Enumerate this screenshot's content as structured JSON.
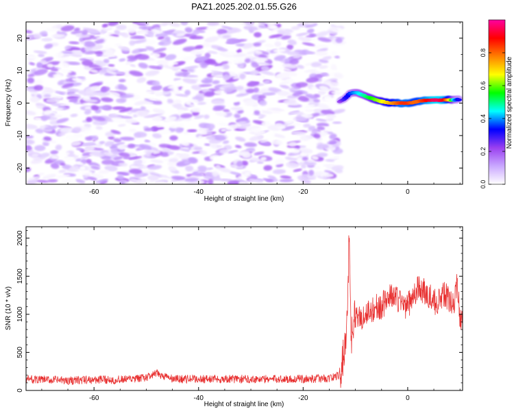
{
  "title": "PAZ1.2025.202.01.55.G26",
  "chart_data": [
    {
      "type": "heatmap",
      "xlabel": "Height of straight line (km)",
      "ylabel": "Frequency (Hz)",
      "xlim": [
        -73,
        10.5
      ],
      "ylim": [
        -25,
        25
      ],
      "xticks": [
        -60,
        -40,
        -20,
        0
      ],
      "yticks": [
        -20,
        -10,
        0,
        10,
        20
      ],
      "colorbar": {
        "label": "Normalized spectral amplitude",
        "range": [
          0.0,
          1.0
        ],
        "ticks": [
          0.0,
          0.2,
          0.4,
          0.6,
          0.8
        ],
        "colors": [
          "#ffffff",
          "#c9a8ff",
          "#9a40f0",
          "#0000ff",
          "#00ffff",
          "#00ff00",
          "#ffff00",
          "#ff8000",
          "#ff0000",
          "#ff00a0"
        ]
      },
      "noise_region": {
        "x_range": [
          -73,
          -13
        ],
        "amplitude_range": [
          0.0,
          0.2
        ]
      },
      "signal_trace": {
        "x": [
          -13,
          -12,
          -11,
          -10,
          -9,
          -8,
          -7,
          -6,
          -5,
          -4,
          -3,
          -2,
          -1,
          0,
          1,
          2,
          3,
          4,
          5,
          6,
          7,
          8,
          9,
          10
        ],
        "frequency": [
          0.5,
          1.5,
          3.0,
          3.3,
          2.8,
          2.0,
          1.5,
          1.0,
          0.5,
          0.2,
          0.0,
          0.0,
          0.0,
          0.0,
          0.2,
          0.5,
          0.8,
          0.9,
          0.9,
          0.9,
          1.0,
          1.0,
          1.0,
          1.1
        ],
        "amplitude": [
          0.2,
          0.3,
          0.35,
          0.4,
          0.45,
          0.5,
          0.55,
          0.6,
          0.65,
          0.7,
          0.75,
          0.8,
          0.85,
          0.85,
          0.8,
          0.8,
          0.85,
          0.9,
          0.95,
          0.95,
          0.9,
          0.7,
          0.4,
          0.3
        ]
      }
    },
    {
      "type": "line",
      "xlabel": "Height of straight line (km)",
      "ylabel": "SNR (10 * v/v)",
      "xlim": [
        -73,
        10.5
      ],
      "ylim": [
        0,
        2150
      ],
      "xticks": [
        -60,
        -40,
        -20,
        0
      ],
      "yticks": [
        0,
        500,
        1000,
        1500,
        2000
      ],
      "color": "#e83030",
      "series": [
        {
          "x": [
            -73,
            -70,
            -65,
            -60,
            -55,
            -52,
            -50,
            -48,
            -45,
            -40,
            -35,
            -30,
            -25,
            -20,
            -15,
            -13,
            -12.5,
            -12,
            -11.7,
            -11.4,
            -11.2,
            -11,
            -10.8,
            -10.5,
            -10,
            -9,
            -8,
            -7,
            -6,
            -5,
            -4,
            -3,
            -2,
            -1,
            0,
            1,
            2,
            3,
            4,
            5,
            6,
            7,
            8,
            9,
            9.5,
            10,
            10.5
          ],
          "y": [
            150,
            140,
            130,
            140,
            140,
            150,
            170,
            220,
            150,
            150,
            150,
            150,
            150,
            150,
            160,
            200,
            350,
            600,
            900,
            1300,
            2150,
            1400,
            700,
            800,
            1000,
            950,
            1000,
            1050,
            1100,
            1100,
            1200,
            1250,
            1200,
            1150,
            1100,
            1250,
            1350,
            1300,
            1250,
            1150,
            1200,
            1250,
            1200,
            1150,
            1450,
            900,
            1050
          ]
        }
      ]
    }
  ]
}
